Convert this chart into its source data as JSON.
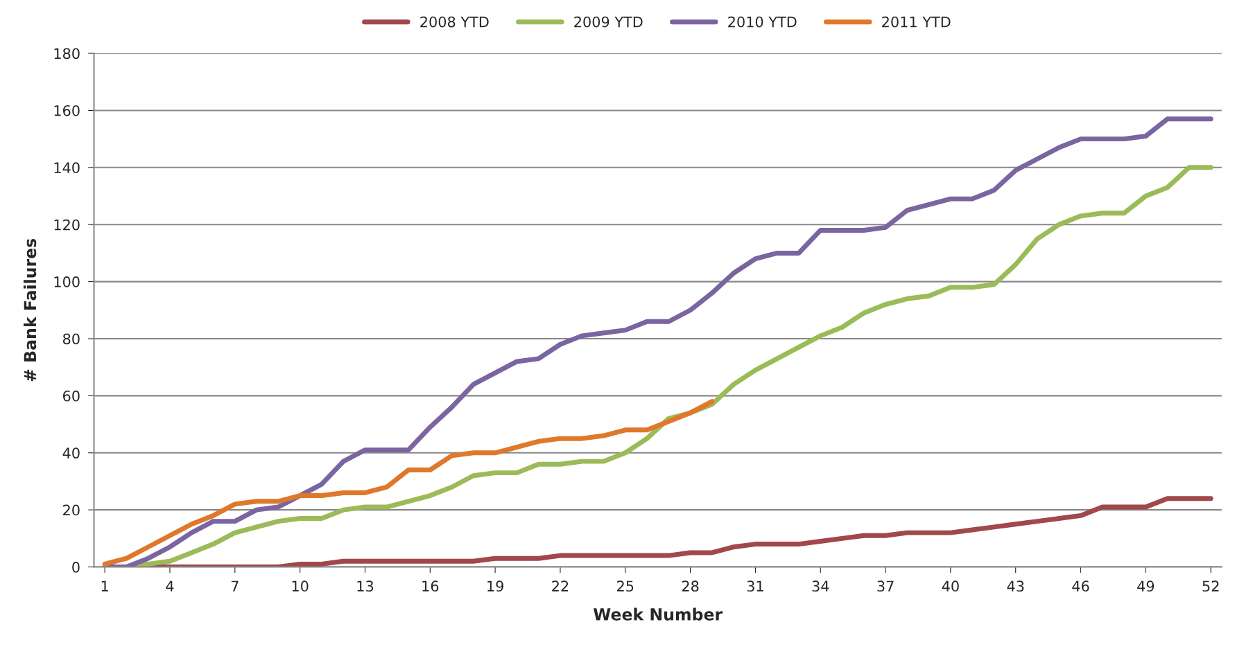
{
  "chart_data": {
    "type": "line",
    "xlabel": "Week Number",
    "ylabel": "# Bank Failures",
    "x": [
      1,
      2,
      3,
      4,
      5,
      6,
      7,
      8,
      9,
      10,
      11,
      12,
      13,
      14,
      15,
      16,
      17,
      18,
      19,
      20,
      21,
      22,
      23,
      24,
      25,
      26,
      27,
      28,
      29,
      30,
      31,
      32,
      33,
      34,
      35,
      36,
      37,
      38,
      39,
      40,
      41,
      42,
      43,
      44,
      45,
      46,
      47,
      48,
      49,
      50,
      51,
      52
    ],
    "series": [
      {
        "name": "2008 YTD",
        "color": "#a0484a",
        "values": [
          0,
          0,
          0,
          0,
          0,
          0,
          0,
          0,
          0,
          1,
          1,
          2,
          2,
          2,
          2,
          2,
          2,
          2,
          3,
          3,
          3,
          4,
          4,
          4,
          4,
          4,
          4,
          5,
          5,
          7,
          8,
          8,
          8,
          9,
          10,
          11,
          11,
          12,
          12,
          12,
          13,
          14,
          15,
          16,
          17,
          18,
          21,
          21,
          21,
          24,
          24,
          24
        ]
      },
      {
        "name": "2009 YTD",
        "color": "#9bbb59",
        "values": [
          0,
          0,
          1,
          2,
          5,
          8,
          12,
          14,
          16,
          17,
          17,
          20,
          21,
          21,
          23,
          25,
          28,
          32,
          33,
          33,
          36,
          36,
          37,
          37,
          40,
          45,
          52,
          54,
          57,
          64,
          69,
          73,
          77,
          81,
          84,
          89,
          92,
          94,
          95,
          98,
          98,
          99,
          106,
          115,
          120,
          123,
          124,
          124,
          130,
          133,
          140,
          140
        ]
      },
      {
        "name": "2010 YTD",
        "color": "#7b65a0",
        "values": [
          0,
          0,
          3,
          7,
          12,
          16,
          16,
          20,
          21,
          25,
          29,
          37,
          41,
          41,
          41,
          49,
          56,
          64,
          68,
          72,
          73,
          78,
          81,
          82,
          83,
          86,
          86,
          90,
          96,
          103,
          108,
          110,
          110,
          118,
          118,
          118,
          119,
          125,
          127,
          129,
          129,
          132,
          139,
          143,
          147,
          150,
          150,
          150,
          151,
          157,
          157,
          157
        ]
      },
      {
        "name": "2011 YTD",
        "color": "#e0782c",
        "values": [
          1,
          3,
          7,
          11,
          15,
          18,
          22,
          23,
          23,
          25,
          25,
          26,
          26,
          28,
          34,
          34,
          39,
          40,
          40,
          42,
          44,
          45,
          45,
          46,
          48,
          48,
          51,
          54,
          58,
          null,
          null,
          null,
          null,
          null,
          null,
          null,
          null,
          null,
          null,
          null,
          null,
          null,
          null,
          null,
          null,
          null,
          null,
          null,
          null,
          null,
          null,
          null
        ]
      }
    ],
    "xlim": [
      0.5,
      52.5
    ],
    "xticks": [
      1,
      4,
      7,
      10,
      13,
      16,
      19,
      22,
      25,
      28,
      31,
      34,
      37,
      40,
      43,
      46,
      49,
      52
    ],
    "ylim": [
      0,
      180
    ],
    "yticks": [
      0,
      20,
      40,
      60,
      80,
      100,
      120,
      140,
      160,
      180
    ],
    "grid": "y",
    "legend": "top",
    "marker": "none",
    "line_style": "solid"
  }
}
